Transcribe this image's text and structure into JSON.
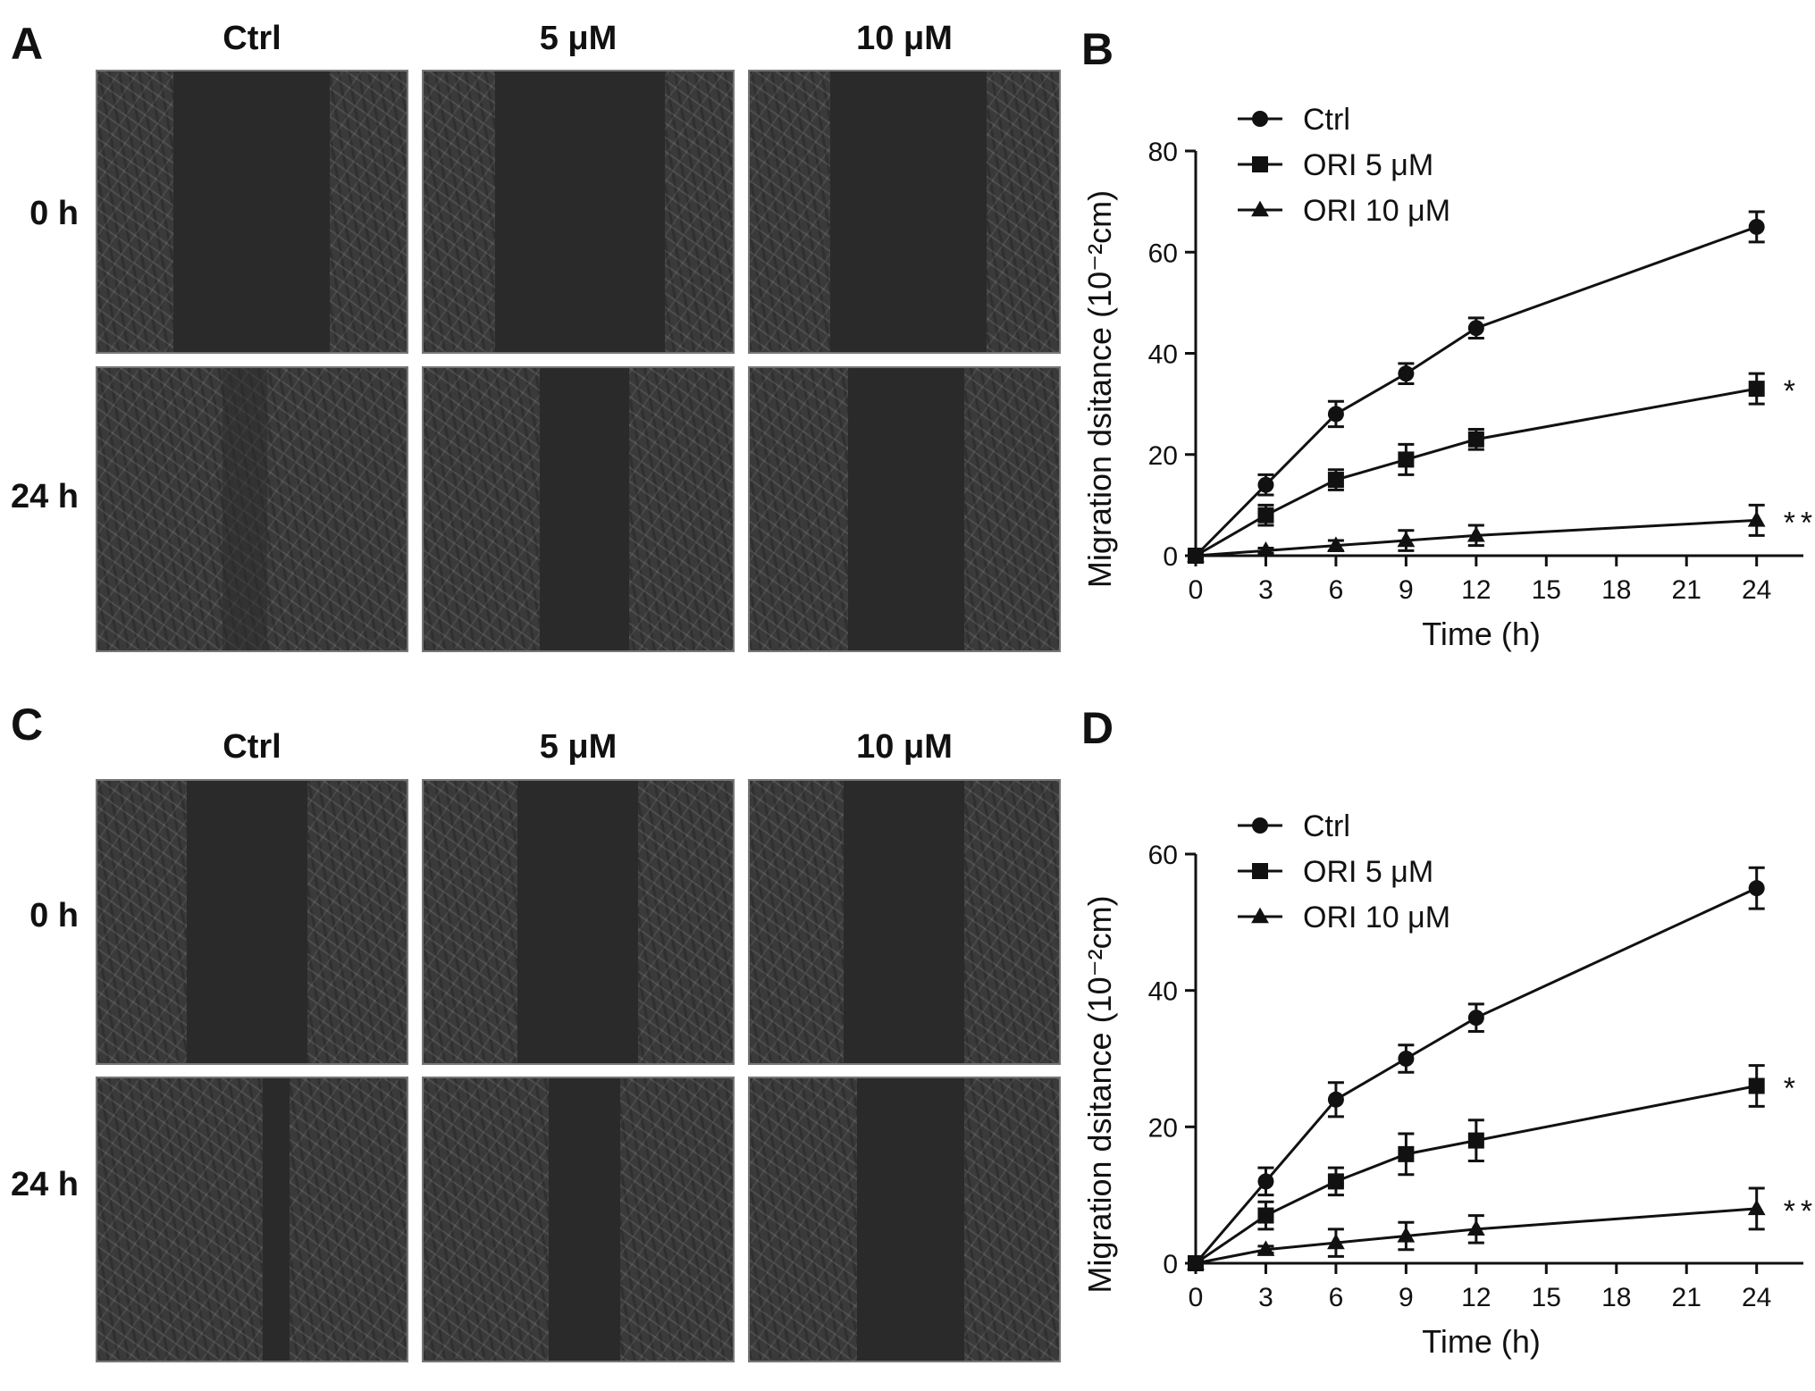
{
  "panels": {
    "A": {
      "letter": "A",
      "columns": [
        "Ctrl",
        "5 μM",
        "10 μM"
      ],
      "rows": [
        "0 h",
        "24 h"
      ]
    },
    "C": {
      "letter": "C",
      "columns": [
        "Ctrl",
        "5 μM",
        "10 μM"
      ],
      "rows": [
        "0 h",
        "24 h"
      ]
    }
  },
  "chart_data": [
    {
      "panel": "B",
      "type": "line",
      "xlabel": "Time (h)",
      "ylabel": "Migration dsitance (10⁻²cm)",
      "xlim": [
        0,
        26
      ],
      "ylim": [
        0,
        80
      ],
      "xticks": [
        0,
        3,
        6,
        9,
        12,
        15,
        18,
        21,
        24
      ],
      "yticks": [
        0,
        20,
        40,
        60,
        80
      ],
      "legend_position": "top-left",
      "series": [
        {
          "name": "Ctrl",
          "marker": "circle",
          "x": [
            0,
            3,
            6,
            9,
            12,
            24
          ],
          "y": [
            0,
            14,
            28,
            36,
            45,
            65
          ],
          "err": [
            0,
            2,
            2.5,
            2,
            2,
            3
          ],
          "annotation": ""
        },
        {
          "name": "ORI 5 μM",
          "marker": "square",
          "x": [
            0,
            3,
            6,
            9,
            12,
            24
          ],
          "y": [
            0,
            8,
            15,
            19,
            23,
            33
          ],
          "err": [
            0,
            2,
            2,
            3,
            2,
            3
          ],
          "annotation": "*"
        },
        {
          "name": "ORI 10 μM",
          "marker": "triangle",
          "x": [
            0,
            3,
            6,
            9,
            12,
            24
          ],
          "y": [
            0,
            1,
            2,
            3,
            4,
            7
          ],
          "err": [
            0,
            0.5,
            1,
            2,
            2,
            3
          ],
          "annotation": "**"
        }
      ]
    },
    {
      "panel": "D",
      "type": "line",
      "xlabel": "Time (h)",
      "ylabel": "Migration dsitance (10⁻²cm)",
      "xlim": [
        0,
        26
      ],
      "ylim": [
        0,
        60
      ],
      "xticks": [
        0,
        3,
        6,
        9,
        12,
        15,
        18,
        21,
        24
      ],
      "yticks": [
        0,
        20,
        40,
        60
      ],
      "legend_position": "top-left",
      "series": [
        {
          "name": "Ctrl",
          "marker": "circle",
          "x": [
            0,
            3,
            6,
            9,
            12,
            24
          ],
          "y": [
            0,
            12,
            24,
            30,
            36,
            55
          ],
          "err": [
            0,
            2,
            2.5,
            2,
            2,
            3
          ],
          "annotation": ""
        },
        {
          "name": "ORI 5 μM",
          "marker": "square",
          "x": [
            0,
            3,
            6,
            9,
            12,
            24
          ],
          "y": [
            0,
            7,
            12,
            16,
            18,
            26
          ],
          "err": [
            0,
            2,
            2,
            3,
            3,
            3
          ],
          "annotation": "*"
        },
        {
          "name": "ORI 10 μM",
          "marker": "triangle",
          "x": [
            0,
            3,
            6,
            9,
            12,
            24
          ],
          "y": [
            0,
            2,
            3,
            4,
            5,
            8
          ],
          "err": [
            0,
            0.5,
            2,
            2,
            2,
            3
          ],
          "annotation": "**"
        }
      ]
    }
  ]
}
